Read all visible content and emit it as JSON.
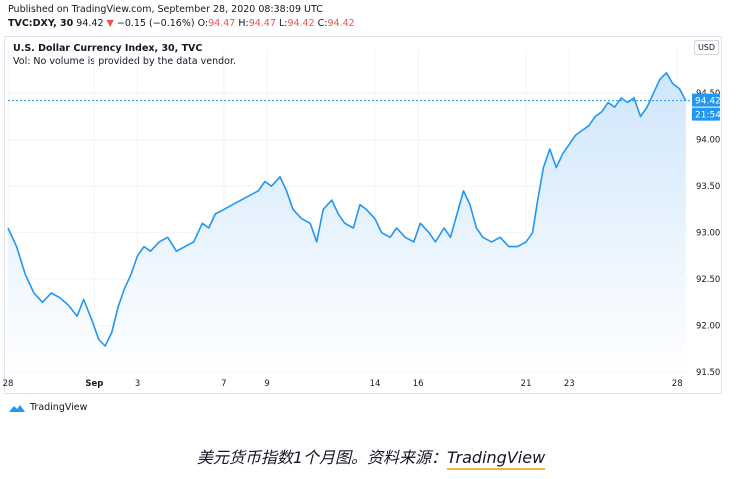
{
  "header": {
    "published": "Published on TradingView.com, September 28, 2020 08:38:09 UTC",
    "symbol": "TVC:DXY, 30",
    "last": "94.42",
    "change": "−0.15 (−0.16%)",
    "o_label": "O:",
    "o_value": "94.47",
    "h_label": "H:",
    "h_value": "94.47",
    "l_label": "L:",
    "l_value": "94.42",
    "c_label": "C:",
    "c_value": "94.42"
  },
  "chart_title": "U.S. Dollar Currency Index, 30, TVC",
  "vol_note": "Vol: No volume is provided by the data vendor.",
  "currency_button": "USD",
  "price_tag": {
    "price": "94.42",
    "countdown": "21:54"
  },
  "footer_logo_text": "TradingView",
  "caption": {
    "prefix": "美元货币指数1个月图。资料来源：",
    "source": "TradingView"
  },
  "colors": {
    "line": "#2196f3",
    "area_top": "#cfe6fb",
    "area_bottom": "#ffffff",
    "price_tag": "#2196f3",
    "down": "#ef5350"
  },
  "chart_data": {
    "type": "area",
    "title": "U.S. Dollar Currency Index, 30, TVC",
    "xlabel": "",
    "ylabel": "",
    "ylim": [
      91.5,
      94.75
    ],
    "yticks": [
      "91.50",
      "92.00",
      "92.50",
      "93.00",
      "93.50",
      "94.00",
      "94.50"
    ],
    "xticks": [
      {
        "label": "28",
        "day": -3
      },
      {
        "label": "Sep",
        "day": 1
      },
      {
        "label": "3",
        "day": 3
      },
      {
        "label": "7",
        "day": 7
      },
      {
        "label": "9",
        "day": 9
      },
      {
        "label": "14",
        "day": 14
      },
      {
        "label": "16",
        "day": 16
      },
      {
        "label": "21",
        "day": 21
      },
      {
        "label": "23",
        "day": 23
      },
      {
        "label": "28",
        "day": 28
      }
    ],
    "xlim_days": [
      -3,
      28.5
    ],
    "series": [
      {
        "values": [
          [
            -3.0,
            93.05
          ],
          [
            -2.6,
            92.85
          ],
          [
            -2.2,
            92.55
          ],
          [
            -1.8,
            92.35
          ],
          [
            -1.4,
            92.25
          ],
          [
            -1.0,
            92.35
          ],
          [
            -0.6,
            92.3
          ],
          [
            -0.2,
            92.22
          ],
          [
            0.2,
            92.1
          ],
          [
            0.5,
            92.28
          ],
          [
            0.9,
            92.05
          ],
          [
            1.2,
            91.85
          ],
          [
            1.5,
            91.78
          ],
          [
            1.8,
            91.92
          ],
          [
            2.1,
            92.2
          ],
          [
            2.4,
            92.4
          ],
          [
            2.7,
            92.55
          ],
          [
            3.0,
            92.75
          ],
          [
            3.3,
            92.85
          ],
          [
            3.6,
            92.8
          ],
          [
            4.0,
            92.9
          ],
          [
            4.4,
            92.95
          ],
          [
            4.8,
            92.8
          ],
          [
            5.2,
            92.85
          ],
          [
            5.6,
            92.9
          ],
          [
            6.0,
            93.1
          ],
          [
            6.3,
            93.05
          ],
          [
            6.6,
            93.2
          ],
          [
            7.0,
            93.25
          ],
          [
            7.4,
            93.3
          ],
          [
            7.8,
            93.35
          ],
          [
            8.2,
            93.4
          ],
          [
            8.6,
            93.45
          ],
          [
            8.9,
            93.55
          ],
          [
            9.2,
            93.5
          ],
          [
            9.6,
            93.6
          ],
          [
            9.9,
            93.45
          ],
          [
            10.2,
            93.25
          ],
          [
            10.6,
            93.15
          ],
          [
            11.0,
            93.1
          ],
          [
            11.3,
            92.9
          ],
          [
            11.6,
            93.25
          ],
          [
            12.0,
            93.35
          ],
          [
            12.3,
            93.2
          ],
          [
            12.6,
            93.1
          ],
          [
            13.0,
            93.05
          ],
          [
            13.3,
            93.3
          ],
          [
            13.6,
            93.25
          ],
          [
            14.0,
            93.15
          ],
          [
            14.3,
            93.0
          ],
          [
            14.7,
            92.95
          ],
          [
            15.0,
            93.05
          ],
          [
            15.4,
            92.95
          ],
          [
            15.8,
            92.9
          ],
          [
            16.1,
            93.1
          ],
          [
            16.5,
            93.0
          ],
          [
            16.8,
            92.9
          ],
          [
            17.2,
            93.05
          ],
          [
            17.5,
            92.95
          ],
          [
            17.8,
            93.2
          ],
          [
            18.1,
            93.45
          ],
          [
            18.4,
            93.3
          ],
          [
            18.7,
            93.05
          ],
          [
            19.0,
            92.95
          ],
          [
            19.4,
            92.9
          ],
          [
            19.8,
            92.95
          ],
          [
            20.2,
            92.85
          ],
          [
            20.6,
            92.85
          ],
          [
            21.0,
            92.9
          ],
          [
            21.3,
            93.0
          ],
          [
            21.5,
            93.3
          ],
          [
            21.8,
            93.7
          ],
          [
            22.1,
            93.9
          ],
          [
            22.4,
            93.7
          ],
          [
            22.7,
            93.85
          ],
          [
            23.0,
            93.95
          ],
          [
            23.3,
            94.05
          ],
          [
            23.6,
            94.1
          ],
          [
            23.9,
            94.15
          ],
          [
            24.2,
            94.25
          ],
          [
            24.5,
            94.3
          ],
          [
            24.8,
            94.4
          ],
          [
            25.1,
            94.35
          ],
          [
            25.4,
            94.45
          ],
          [
            25.7,
            94.4
          ],
          [
            26.0,
            94.45
          ],
          [
            26.3,
            94.25
          ],
          [
            26.6,
            94.35
          ],
          [
            26.9,
            94.5
          ],
          [
            27.2,
            94.65
          ],
          [
            27.5,
            94.72
          ],
          [
            27.8,
            94.6
          ],
          [
            28.1,
            94.55
          ],
          [
            28.4,
            94.42
          ]
        ]
      }
    ]
  }
}
